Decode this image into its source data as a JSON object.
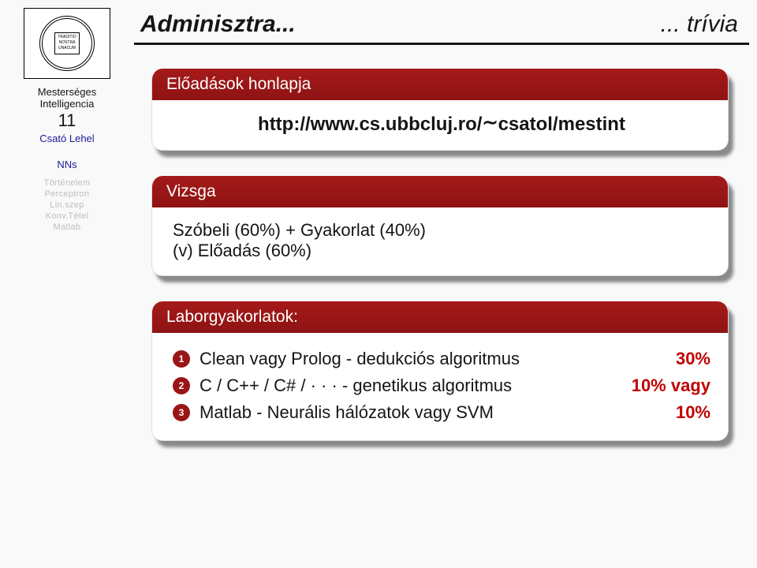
{
  "sidebar": {
    "course_line1": "Mesterséges",
    "course_line2": "Intelligencia",
    "course_number": "11",
    "author": "Csató Lehel",
    "nav_section": "NNs",
    "nav_items": [
      "Történelem",
      "Perceptron",
      "Lin.szep",
      "Konv.Tétel",
      "Matlab"
    ]
  },
  "title": {
    "left": "Adminisztra...",
    "right": "... trívia"
  },
  "blocks": {
    "lectures": {
      "header": "Előadások honlapja",
      "url_prefix": "http://www.cs.ubbcluj.ro/",
      "url_suffix": "csatol/mestint"
    },
    "exam": {
      "header": "Vizsga",
      "line1": "Szóbeli (60%) + Gyakorlat (40%)",
      "line2": "(v) Előadás (60%)"
    },
    "labs": {
      "header": "Laborgyakorlatok:",
      "items": [
        {
          "n": "1",
          "text": "Clean vagy Prolog - dedukciós algoritmus",
          "pct": "30%"
        },
        {
          "n": "2",
          "text": "C / C++ / C# / · · ·  - genetikus algoritmus",
          "pct": "10% vagy"
        },
        {
          "n": "3",
          "text": "Matlab - Neurális hálózatok vagy SVM",
          "pct": "10%"
        }
      ]
    }
  },
  "colors": {
    "accent": "#9a1515",
    "pct": "#c00000",
    "link": "#1a1a9a",
    "muted": "#bdbdbd",
    "fg": "#151515",
    "bg": "#f9f9f9"
  }
}
